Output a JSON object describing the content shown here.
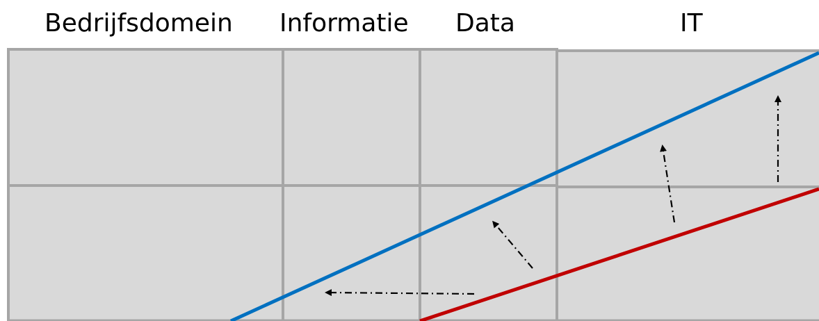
{
  "headers": {
    "bedrijfsdomein": "Bedrijfsdomein",
    "informatie": "Informatie",
    "data": "Data",
    "it": "IT"
  },
  "colors": {
    "cell_fill": "#d9d9d9",
    "grid_line": "#a6a6a6",
    "blue_line": "#0070c0",
    "red_line": "#c00000",
    "arrow": "#000000"
  }
}
